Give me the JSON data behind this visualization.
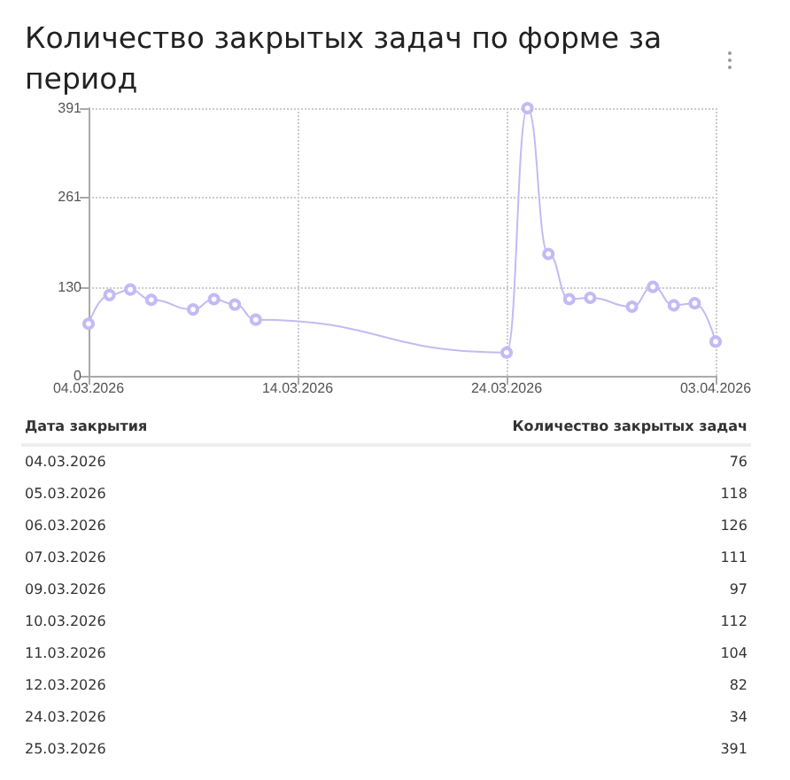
{
  "chart_data": {
    "type": "line",
    "title": "Количество закрытых задач по форме за период",
    "x": [
      "2026-03-04",
      "2026-03-05",
      "2026-03-06",
      "2026-03-07",
      "2026-03-09",
      "2026-03-10",
      "2026-03-11",
      "2026-03-12",
      "2026-03-24",
      "2026-03-25",
      "2026-03-26",
      "2026-03-27",
      "2026-03-28",
      "2026-03-30",
      "2026-03-31",
      "2026-04-01",
      "2026-04-02",
      "2026-04-03"
    ],
    "series": [
      {
        "color": "#c3baf5",
        "values": [
          76,
          118,
          126,
          111,
          97,
          112,
          104,
          82,
          34,
          391,
          178,
          112,
          114,
          101,
          130,
          103,
          106,
          50
        ]
      }
    ],
    "value_labels": [
      "76",
      "118",
      "126",
      "111",
      "97",
      "112",
      "104",
      "82",
      "34",
      "391",
      null,
      null,
      null,
      null,
      null,
      null,
      null,
      null
    ],
    "annotations": [
      "Дата закрытия",
      "Количество закрытых задач",
      "04.03.2026",
      "05.03.2026",
      "06.03.2026",
      "07.03.2026",
      "09.03.2026",
      "10.03.2026",
      "11.03.2026",
      "12.03.2026",
      "24.03.2026",
      "25.03.2026"
    ],
    "xlim": [
      "2026-03-04",
      "2026-04-03"
    ],
    "xticks": [
      {
        "value": "2026-03-04",
        "label": "04.03.2026"
      },
      {
        "value": "2026-03-14",
        "label": "14.03.2026"
      },
      {
        "value": "2026-03-24",
        "label": "24.03.2026"
      },
      {
        "value": "2026-04-03",
        "label": "03.04.2026"
      }
    ],
    "ylim": [
      0,
      391
    ],
    "yticks": [
      0,
      130,
      261,
      391
    ],
    "grid": true,
    "marker": "circle",
    "line_style": "solid"
  }
}
